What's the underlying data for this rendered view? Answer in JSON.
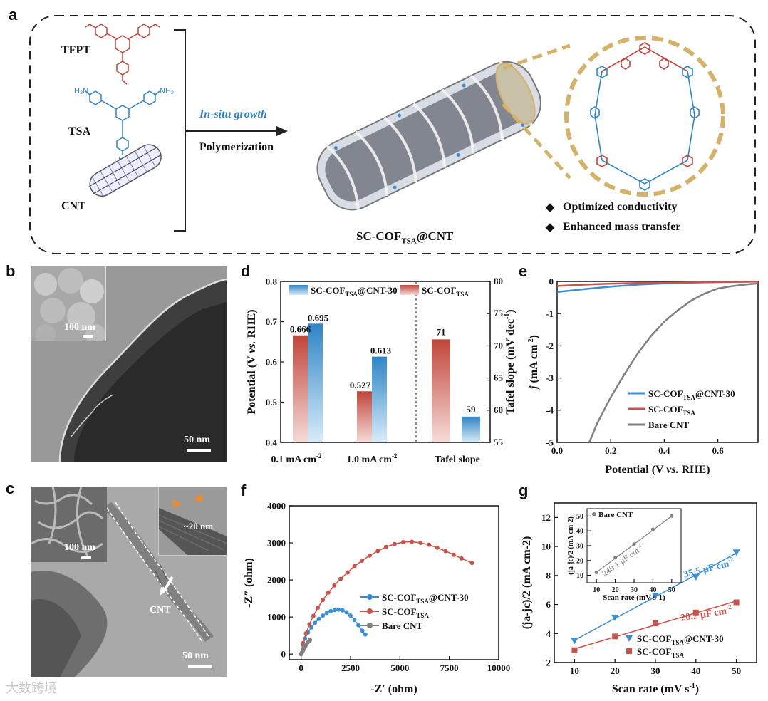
{
  "panels": {
    "a": "a",
    "b": "b",
    "c": "c",
    "d": "d",
    "e": "e",
    "f": "f",
    "g": "g"
  },
  "panel_a": {
    "monomers": [
      "TFPT",
      "TSA",
      "CNT"
    ],
    "arrow_top": "In-situ growth",
    "arrow_bottom": "Polymerization",
    "product_main": "SC-COF",
    "product_sub": "TSA",
    "product_tail": "@CNT",
    "features": [
      "Optimized conductivity",
      "Enhanced mass transfer"
    ],
    "colors": {
      "frame": "#222222",
      "tfpt": "#c0453a",
      "tsa": "#2f84c6",
      "gold": "#d4b26a"
    }
  },
  "panel_b": {
    "inset_scale": "100 nm",
    "main_scale": "50 nm"
  },
  "panel_c": {
    "inset_scale": "100 nm",
    "main_scale": "50 nm",
    "diameter": "~20 nm",
    "cnt_label": "CNT"
  },
  "watermark": "大数跨境",
  "chart_data": [
    {
      "panel": "d",
      "type": "bar",
      "categories": [
        "0.1 mA cm",
        "1.0 mA cm",
        "Tafel slope"
      ],
      "category_superscripts": [
        "-2",
        "-2",
        ""
      ],
      "series": [
        {
          "name": "SC-COF@CNT-30",
          "name_main": "SC-COF",
          "name_sub": "TSA",
          "name_tail": "@CNT-30",
          "color": "#3b8fd4",
          "axis": "left",
          "values": [
            0.695,
            0.613,
            null
          ],
          "right_values": [
            null,
            null,
            59
          ]
        },
        {
          "name": "SC-COF",
          "name_main": "SC-COF",
          "name_sub": "TSA",
          "name_tail": "",
          "color": "#c8534a",
          "axis": "left",
          "values": [
            0.666,
            0.527,
            null
          ],
          "right_values": [
            null,
            null,
            71
          ]
        }
      ],
      "data_labels": [
        "0.666",
        "0.695",
        "0.527",
        "0.613",
        "71",
        "59"
      ],
      "ylabel": "Potential (V vs. RHE)",
      "ylabel_pre": "Potential (V ",
      "ylabel_it": "vs.",
      "ylabel_post": " RHE)",
      "ylim": [
        0.4,
        0.8
      ],
      "yticks": [
        "0.4",
        "0.5",
        "0.6",
        "0.7",
        "0.8"
      ],
      "y2label": "Tafel slope (mV dec",
      "y2label_sup": "-1",
      "y2label_close": ")",
      "y2lim": [
        55,
        80
      ],
      "y2ticks": [
        "55",
        "60",
        "65",
        "70",
        "75",
        "80"
      ]
    },
    {
      "panel": "e",
      "type": "line",
      "xlabel_pre": "Potential (V ",
      "xlabel_it": "vs.",
      "xlabel_post": " RHE)",
      "ylabel_it": "j",
      "ylabel_post": " (mA cm",
      "ylabel_sup": "-2",
      "ylabel_close": ")",
      "xlim": [
        0,
        0.75
      ],
      "ylim": [
        -5,
        0
      ],
      "xticks": [
        "0.0",
        "0.2",
        "0.4",
        "0.6"
      ],
      "yticks": [
        "0",
        "-1",
        "-2",
        "-3",
        "-4",
        "-5"
      ],
      "series": [
        {
          "name": "SC-COF@CNT-30",
          "name_main": "SC-COF",
          "name_sub": "TSA",
          "name_tail": "@CNT-30",
          "color": "#3b8fd4",
          "x": [
            0,
            0.1,
            0.2,
            0.3,
            0.4,
            0.5,
            0.6,
            0.7,
            0.75
          ],
          "y": [
            -0.33,
            -0.24,
            -0.16,
            -0.1,
            -0.06,
            -0.04,
            -0.02,
            -0.01,
            -0.005
          ]
        },
        {
          "name": "SC-COF",
          "name_main": "SC-COF",
          "name_sub": "TSA",
          "name_tail": "",
          "color": "#c8534a",
          "x": [
            0,
            0.1,
            0.2,
            0.3,
            0.4,
            0.5,
            0.6,
            0.7,
            0.75
          ],
          "y": [
            -0.14,
            -0.1,
            -0.07,
            -0.05,
            -0.04,
            -0.03,
            -0.02,
            -0.01,
            -0.005
          ]
        },
        {
          "name": "Bare CNT",
          "name_main": "Bare CNT",
          "name_sub": "",
          "name_tail": "",
          "color": "#808080",
          "x": [
            0.12,
            0.15,
            0.2,
            0.25,
            0.3,
            0.35,
            0.4,
            0.45,
            0.5,
            0.55,
            0.6,
            0.65,
            0.7,
            0.75
          ],
          "y": [
            -5.0,
            -4.4,
            -3.6,
            -2.9,
            -2.25,
            -1.7,
            -1.25,
            -0.9,
            -0.6,
            -0.38,
            -0.22,
            -0.15,
            -0.1,
            -0.06
          ]
        }
      ]
    },
    {
      "panel": "f",
      "type": "scatter",
      "xlabel": "-Z′ (ohm)",
      "ylabel": "-Z″ (ohm)",
      "xlim": [
        0,
        10000
      ],
      "ylim": [
        0,
        4000
      ],
      "xticks": [
        "0",
        "2500",
        "5000",
        "7500",
        "10000"
      ],
      "yticks": [
        "0",
        "1000",
        "2000",
        "3000",
        "4000"
      ],
      "series": [
        {
          "name": "SC-COF@CNT-30",
          "name_main": "SC-COF",
          "name_sub": "TSA",
          "name_tail": "@CNT-30",
          "color": "#3b8fd4",
          "x": [
            0,
            80,
            200,
            350,
            520,
            700,
            900,
            1100,
            1300,
            1500,
            1700,
            1900,
            2100,
            2300,
            2500,
            2700,
            2900,
            3100,
            3250
          ],
          "y": [
            0,
            250,
            420,
            580,
            720,
            840,
            950,
            1040,
            1110,
            1160,
            1190,
            1200,
            1180,
            1130,
            1040,
            920,
            780,
            630,
            530
          ]
        },
        {
          "name": "SC-COF",
          "name_main": "SC-COF",
          "name_sub": "TSA",
          "name_tail": "",
          "color": "#c8534a",
          "x": [
            0,
            100,
            250,
            420,
            620,
            850,
            1100,
            1380,
            1680,
            2000,
            2350,
            2700,
            3080,
            3470,
            3880,
            4300,
            4730,
            5170,
            5610,
            6040,
            6470,
            6890,
            7310,
            7720,
            8120,
            8650
          ],
          "y": [
            0,
            300,
            560,
            800,
            1030,
            1250,
            1460,
            1660,
            1850,
            2030,
            2200,
            2370,
            2520,
            2660,
            2780,
            2890,
            2970,
            3020,
            3030,
            3000,
            2950,
            2870,
            2780,
            2680,
            2580,
            2460
          ]
        },
        {
          "name": "Bare CNT",
          "name_main": "Bare CNT",
          "name_sub": "",
          "name_tail": "",
          "color": "#808080",
          "x": [
            0,
            30,
            70,
            110,
            160,
            210,
            270,
            330,
            400,
            450
          ],
          "y": [
            0,
            30,
            70,
            110,
            160,
            210,
            260,
            310,
            350,
            380
          ]
        }
      ]
    },
    {
      "panel": "g",
      "type": "scatter",
      "xlabel_pre": "Scan rate (mV s",
      "xlabel_sup": "-1",
      "xlabel_close": ")",
      "ylabel": "(ja-jc)/2 (mA cm-2)",
      "xlim": [
        5,
        55
      ],
      "ylim": [
        2,
        13
      ],
      "xticks": [
        "10",
        "20",
        "30",
        "40",
        "50"
      ],
      "yticks": [
        "2",
        "4",
        "6",
        "8",
        "10",
        "12"
      ],
      "series": [
        {
          "name": "SC-COF@CNT-30",
          "name_main": "SC-COF",
          "name_sub": "TSA",
          "name_tail": "@CNT-30",
          "color": "#3b8fd4",
          "marker": "triangle",
          "x": [
            10,
            20,
            30,
            40,
            50
          ],
          "y": [
            3.5,
            5.1,
            6.6,
            7.9,
            9.6
          ],
          "slope_label": "35.5 μF cm",
          "slope_sup": "-2"
        },
        {
          "name": "SC-COF",
          "name_main": "SC-COF",
          "name_sub": "TSA",
          "name_tail": "",
          "color": "#c8534a",
          "marker": "square",
          "x": [
            10,
            20,
            30,
            40,
            50
          ],
          "y": [
            2.85,
            3.8,
            4.7,
            5.45,
            6.15
          ],
          "slope_label": "20.2 μF cm",
          "slope_sup": "-2"
        }
      ],
      "inset": {
        "series": [
          {
            "name": "Bare CNT",
            "color": "#808080",
            "x": [
              10,
              20,
              30,
              40,
              50
            ],
            "y": [
              12,
              22,
              31,
              41,
              50
            ]
          }
        ],
        "slope_label": "240.1 μF cm",
        "slope_sup": "-2",
        "xlabel": "Scan rate (mV s-1)",
        "ylabel": "(ja-jc)/2 (mA cm-2)",
        "xlim": [
          5,
          55
        ],
        "ylim": [
          5,
          55
        ],
        "xticks": [
          "10",
          "20",
          "30",
          "40",
          "50"
        ],
        "yticks": [
          "10",
          "20",
          "30",
          "40",
          "50"
        ]
      }
    }
  ]
}
